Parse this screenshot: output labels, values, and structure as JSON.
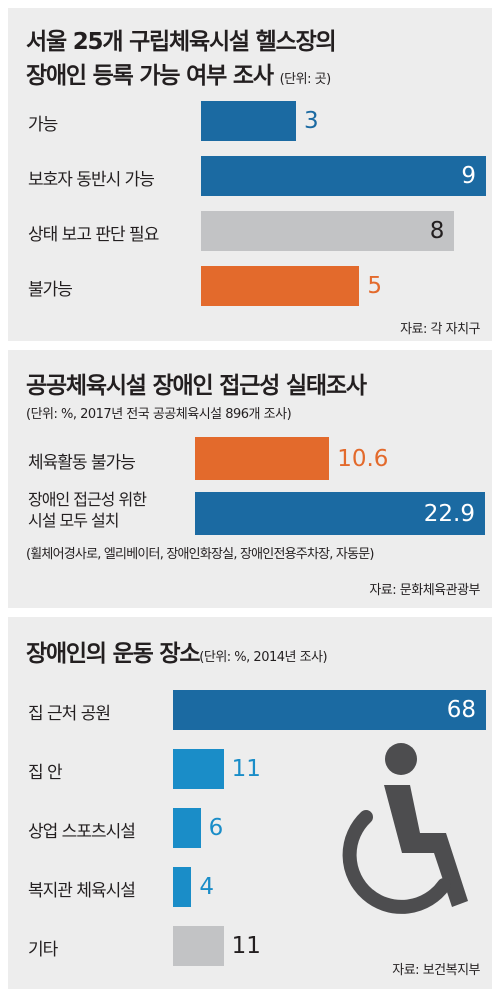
{
  "colors": {
    "blue_dark": "#1b6aa2",
    "blue_light": "#1a8dc8",
    "orange": "#e36a2c",
    "gray": "#c2c3c5",
    "panel": "#ededed",
    "icon": "#4d4d4f"
  },
  "section1": {
    "title_line1": "서울 25개 구립체육시설 헬스장의",
    "title_line2": "장애인 등록 가능 여부 조사",
    "unit": "(단위: 곳)",
    "source": "자료: 각 자치구"
  },
  "section2": {
    "title": "공공체육시설 장애인 접근성 실태조사",
    "subtitle": "(단위: %, 2017년 전국 공공체육시설 896개 조사)",
    "label2_line1": "장애인 접근성 위한",
    "label2_line2": "시설 모두 설치",
    "note": "(휠체어경사로, 엘리베이터, 장애인화장실, 장애인전용주차장, 자동문)",
    "source": "자료: 문화체육관광부"
  },
  "section3": {
    "title": "장애인의 운동 장소",
    "unit": "(단위: %, 2014년 조사)",
    "source": "자료: 보건복지부",
    "icon": "wheelchair-icon"
  },
  "chart_data": [
    {
      "type": "bar",
      "title": "서울 25개 구립체육시설 헬스장의 장애인 등록 가능 여부 조사",
      "unit": "곳",
      "categories": [
        "가능",
        "보호자 동반시 가능",
        "상태 보고 판단 필요",
        "불가능"
      ],
      "values": [
        3,
        9,
        8,
        5
      ],
      "value_labels": [
        "3",
        "9",
        "8",
        "5"
      ],
      "colors": [
        "#1b6aa2",
        "#1b6aa2",
        "#c2c3c5",
        "#e36a2c"
      ],
      "value_colors": [
        "#1b6aa2",
        "#ffffff",
        "#231f20",
        "#e36a2c"
      ]
    },
    {
      "type": "bar",
      "title": "공공체육시설 장애인 접근성 실태조사",
      "unit": "%",
      "categories": [
        "체육활동 불가능",
        "장애인 접근성 위한 시설 모두 설치"
      ],
      "values": [
        10.6,
        22.9
      ],
      "value_labels": [
        "10.6",
        "22.9"
      ],
      "colors": [
        "#e36a2c",
        "#1b6aa2"
      ],
      "value_colors": [
        "#e36a2c",
        "#ffffff"
      ]
    },
    {
      "type": "bar",
      "title": "장애인의 운동 장소",
      "unit": "%",
      "categories": [
        "집 근처 공원",
        "집 안",
        "상업 스포츠시설",
        "복지관 체육시설",
        "기타"
      ],
      "values": [
        68,
        11,
        6,
        4,
        11
      ],
      "value_labels": [
        "68",
        "11",
        "6",
        "4",
        "11"
      ],
      "colors": [
        "#1b6aa2",
        "#1a8dc8",
        "#1a8dc8",
        "#1a8dc8",
        "#c2c3c5"
      ],
      "value_colors": [
        "#ffffff",
        "#1a8dc8",
        "#1a8dc8",
        "#1a8dc8",
        "#231f20"
      ]
    }
  ]
}
